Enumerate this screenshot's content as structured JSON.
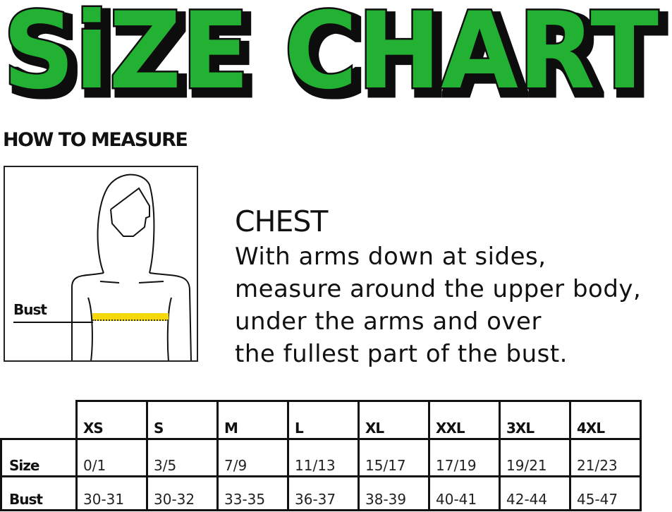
{
  "title": "SiZE CHART",
  "colors": {
    "title_fill": "#22b131",
    "title_shadow": "#111111",
    "tape": "#f5d90a"
  },
  "how_to_measure": "HOW TO MEASURE",
  "figure": {
    "label": "Bust"
  },
  "chest": {
    "title": "CHEST",
    "lines": [
      "With arms down at sides,",
      "measure around the upper body,",
      "under the arms and over",
      "the fullest part of the bust."
    ]
  },
  "table": {
    "headers": [
      "XS",
      "S",
      "M",
      "L",
      "XL",
      "XXL",
      "3XL",
      "4XL"
    ],
    "rows": [
      {
        "label": "Size",
        "values": [
          "0/1",
          "3/5",
          "7/9",
          "11/13",
          "15/17",
          "17/19",
          "19/21",
          "21/23"
        ]
      },
      {
        "label": "Bust",
        "values": [
          "30-31",
          "30-32",
          "33-35",
          "36-37",
          "38-39",
          "40-41",
          "42-44",
          "45-47"
        ]
      }
    ]
  }
}
